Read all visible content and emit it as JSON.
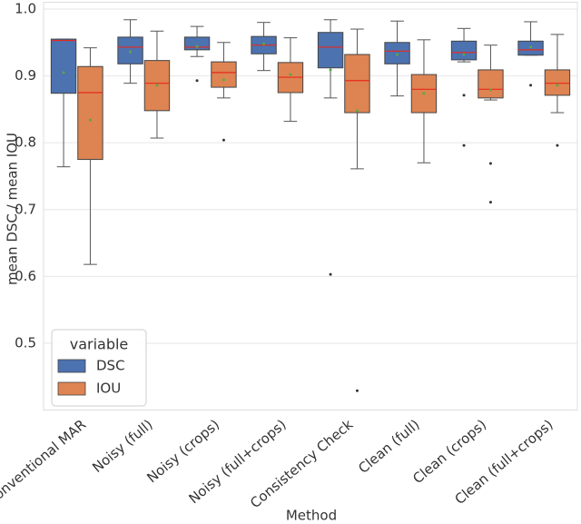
{
  "chart_data": {
    "type": "box",
    "y_label": "mean DSC / mean IOU",
    "x_label": "Method",
    "categories": [
      "Conventional MAR",
      "Noisy (full)",
      "Noisy (crops)",
      "Noisy (full+crops)",
      "Consistency Check",
      "Clean (full)",
      "Clean (crops)",
      "Clean (full+crops)"
    ],
    "ylim": [
      0.4,
      1.01
    ],
    "yticks": [
      0.5,
      0.6,
      0.7,
      0.8,
      0.9,
      {
        "value": 1,
        "label": "1.0"
      }
    ],
    "grid": true,
    "legend_title": "variable",
    "legend_position": "lower left",
    "median_color": "#e8291c",
    "mean_color": "#5aa845",
    "series": [
      {
        "name": "DSC",
        "color": "#4c72b0",
        "boxes": [
          {
            "low": 0.764,
            "q1": 0.874,
            "median": 0.953,
            "q3": 0.955,
            "high": 0.955,
            "mean": 0.905,
            "outliers": []
          },
          {
            "low": 0.889,
            "q1": 0.918,
            "median": 0.943,
            "q3": 0.958,
            "high": 0.984,
            "mean": 0.936,
            "outliers": []
          },
          {
            "low": 0.929,
            "q1": 0.939,
            "median": 0.943,
            "q3": 0.958,
            "high": 0.974,
            "mean": 0.944,
            "outliers": [
              0.893
            ]
          },
          {
            "low": 0.908,
            "q1": 0.933,
            "median": 0.946,
            "q3": 0.959,
            "high": 0.98,
            "mean": 0.948,
            "outliers": []
          },
          {
            "low": 0.867,
            "q1": 0.912,
            "median": 0.943,
            "q3": 0.965,
            "high": 0.984,
            "mean": 0.909,
            "outliers": [
              0.603
            ]
          },
          {
            "low": 0.87,
            "q1": 0.918,
            "median": 0.937,
            "q3": 0.95,
            "high": 0.982,
            "mean": 0.932,
            "outliers": []
          },
          {
            "low": 0.921,
            "q1": 0.924,
            "median": 0.935,
            "q3": 0.952,
            "high": 0.971,
            "mean": 0.932,
            "outliers": [
              0.871,
              0.796
            ]
          },
          {
            "low": 0.931,
            "q1": 0.931,
            "median": 0.939,
            "q3": 0.952,
            "high": 0.981,
            "mean": 0.943,
            "outliers": [
              0.886
            ]
          }
        ]
      },
      {
        "name": "IOU",
        "color": "#dd8452",
        "boxes": [
          {
            "low": 0.618,
            "q1": 0.775,
            "median": 0.875,
            "q3": 0.914,
            "high": 0.942,
            "mean": 0.834,
            "outliers": []
          },
          {
            "low": 0.807,
            "q1": 0.848,
            "median": 0.889,
            "q3": 0.923,
            "high": 0.967,
            "mean": 0.886,
            "outliers": []
          },
          {
            "low": 0.867,
            "q1": 0.883,
            "median": 0.905,
            "q3": 0.921,
            "high": 0.95,
            "mean": 0.894,
            "outliers": [
              0.804
            ]
          },
          {
            "low": 0.832,
            "q1": 0.875,
            "median": 0.898,
            "q3": 0.92,
            "high": 0.957,
            "mean": 0.902,
            "outliers": []
          },
          {
            "low": 0.761,
            "q1": 0.845,
            "median": 0.893,
            "q3": 0.932,
            "high": 0.97,
            "mean": 0.848,
            "outliers": [
              0.429
            ]
          },
          {
            "low": 0.77,
            "q1": 0.845,
            "median": 0.88,
            "q3": 0.902,
            "high": 0.954,
            "mean": 0.874,
            "outliers": []
          },
          {
            "low": 0.864,
            "q1": 0.867,
            "median": 0.88,
            "q3": 0.909,
            "high": 0.946,
            "mean": 0.879,
            "outliers": [
              0.769,
              0.711
            ]
          },
          {
            "low": 0.845,
            "q1": 0.871,
            "median": 0.889,
            "q3": 0.909,
            "high": 0.962,
            "mean": 0.886,
            "outliers": [
              0.796
            ]
          }
        ]
      }
    ]
  }
}
